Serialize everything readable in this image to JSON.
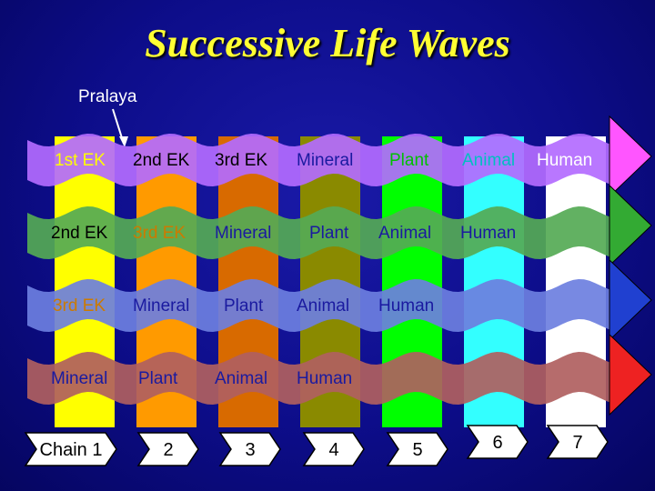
{
  "title": "Successive Life Waves",
  "pralaya_label": "Pralaya",
  "stripe_colors": [
    "#ffff00",
    "#ff9a00",
    "#d86a00",
    "#8a8a00",
    "#00ff00",
    "#33ffff",
    "#ffffff"
  ],
  "waves": [
    {
      "color": "#b36bff",
      "arrow_color": "#ff55ff",
      "labels": [
        {
          "text": "1st EK",
          "color": "#ffff00"
        },
        {
          "text": "2nd EK",
          "color": "#000000"
        },
        {
          "text": "3rd EK",
          "color": "#000000"
        },
        {
          "text": "Mineral",
          "color": "#1a1aa0"
        },
        {
          "text": "Plant",
          "color": "#00c000"
        },
        {
          "text": "Animal",
          "color": "#00c0c0"
        },
        {
          "text": "Human",
          "color": "#ffffff"
        }
      ]
    },
    {
      "color": "#55aa55",
      "arrow_color": "#33aa33",
      "labels": [
        {
          "text": "2nd EK",
          "color": "#000000"
        },
        {
          "text": "3rd EK",
          "color": "#cc7a00"
        },
        {
          "text": "Mineral",
          "color": "#1a1aa0"
        },
        {
          "text": "Plant",
          "color": "#1a1aa0"
        },
        {
          "text": "Animal",
          "color": "#1a1aa0"
        },
        {
          "text": "Human",
          "color": "#1a1aa0"
        }
      ]
    },
    {
      "color": "#6d7fe0",
      "arrow_color": "#2040d0",
      "labels": [
        {
          "text": "3rd EK",
          "color": "#cc7a00"
        },
        {
          "text": "Mineral",
          "color": "#1a1aa0"
        },
        {
          "text": "Plant",
          "color": "#1a1aa0"
        },
        {
          "text": "Animal",
          "color": "#1a1aa0"
        },
        {
          "text": "Human",
          "color": "#1a1aa0"
        }
      ]
    },
    {
      "color": "#b06060",
      "arrow_color": "#ee2222",
      "labels": [
        {
          "text": "Mineral",
          "color": "#1a1aa0"
        },
        {
          "text": "Plant",
          "color": "#1a1aa0"
        },
        {
          "text": "Animal",
          "color": "#1a1aa0"
        },
        {
          "text": "Human",
          "color": "#1a1aa0"
        }
      ]
    }
  ],
  "chains": [
    "Chain 1",
    "2",
    "3",
    "4",
    "5",
    "6",
    "7"
  ]
}
